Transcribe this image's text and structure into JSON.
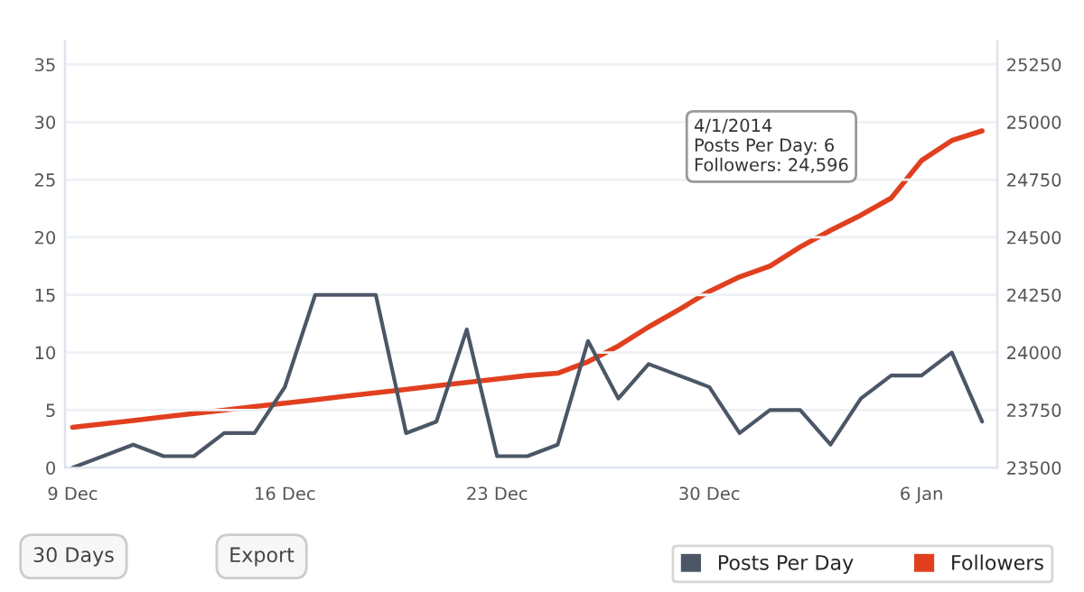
{
  "chart_data": {
    "type": "line",
    "x": [
      "2013-12-09",
      "2013-12-10",
      "2013-12-11",
      "2013-12-12",
      "2013-12-13",
      "2013-12-14",
      "2013-12-15",
      "2013-12-16",
      "2013-12-17",
      "2013-12-18",
      "2013-12-19",
      "2013-12-20",
      "2013-12-21",
      "2013-12-22",
      "2013-12-23",
      "2013-12-24",
      "2013-12-25",
      "2013-12-26",
      "2013-12-27",
      "2013-12-28",
      "2013-12-29",
      "2013-12-30",
      "2013-12-31",
      "2014-01-01",
      "2014-01-02",
      "2014-01-03",
      "2014-01-04",
      "2014-01-05",
      "2014-01-06",
      "2014-01-07",
      "2014-01-08"
    ],
    "series": [
      {
        "name": "Posts Per Day",
        "color": "#4b5766",
        "values": [
          0,
          1,
          2,
          1,
          1,
          3,
          3,
          7,
          15,
          15,
          15,
          3,
          4,
          12,
          1,
          1,
          2,
          11,
          6,
          9,
          8,
          7,
          3,
          5,
          5,
          2,
          6,
          8,
          8,
          10,
          4
        ]
      },
      {
        "name": "Followers",
        "color": "#e0401f",
        "axis": "y2",
        "values": [
          23675,
          23690,
          23705,
          23720,
          23735,
          23750,
          23765,
          23780,
          23795,
          23810,
          23825,
          23840,
          23855,
          23870,
          23885,
          23900,
          23910,
          23960,
          24028,
          24111,
          24186,
          24265,
          24328,
          24375,
          24458,
          24530,
          24596,
          24670,
          24833,
          24920,
          24962
        ]
      }
    ],
    "xlim": [
      "2013-12-08T18:00",
      "2014-01-08T12:00"
    ],
    "xticks": [
      {
        "value": "2013-12-09",
        "label": "9 Dec"
      },
      {
        "value": "2013-12-16",
        "label": "16 Dec"
      },
      {
        "value": "2013-12-23",
        "label": "23 Dec"
      },
      {
        "value": "2013-12-30",
        "label": "30 Dec"
      },
      {
        "value": "2014-01-06",
        "label": "6 Jan"
      }
    ],
    "ylim": [
      0,
      37
    ],
    "yticks": [
      0,
      5,
      10,
      15,
      20,
      25,
      30,
      35
    ],
    "y2lim": [
      23500,
      25350
    ],
    "y2ticks": [
      23500,
      23750,
      24000,
      24250,
      24500,
      24750,
      25000,
      25250
    ],
    "grid": "y",
    "legend": "bottom",
    "marker": "none",
    "line_style": "solid",
    "annotations": [
      "30 Days",
      "Export",
      "4/1/2014\nPosts Per Day: 6\nFollowers: 24,596"
    ]
  }
}
